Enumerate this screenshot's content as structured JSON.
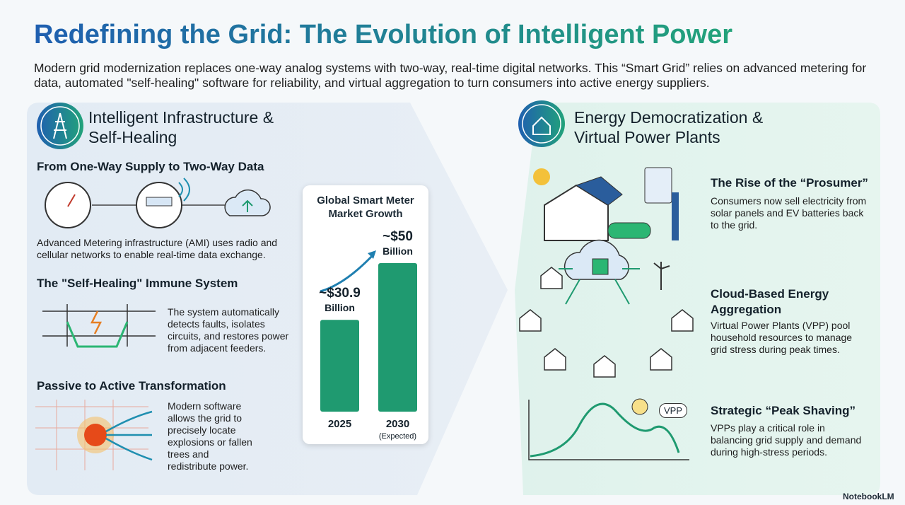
{
  "header": {
    "title": "Redefining the Grid: The Evolution of Intelligent Power",
    "subtitle": "Modern grid modernization replaces one-way analog systems with two-way, real-time digital networks. This “Smart Grid” relies on advanced metering for data, automated \"self-healing\" software for reliability, and virtual aggregation to turn consumers into active energy suppliers."
  },
  "left_panel": {
    "title": "Intelligent Infrastructure & Self-Healing",
    "sections": [
      {
        "heading": "From One-Way Supply to Two-Way Data",
        "text": "Advanced Metering infrastructure (AMI) uses radio and cellular networks to enable real-time data exchange."
      },
      {
        "heading": "The \"Self-Healing\" Immune System",
        "text": "The system automatically detects faults, isolates circuits, and restores power from adjacent feeders."
      },
      {
        "heading": "Passive to Active Transformation",
        "text": "Modern software allows the grid to precisely locate explosions or fallen trees and redistribute power."
      }
    ]
  },
  "market_chart": {
    "title": "Global Smart Meter Market Growth",
    "categories": [
      "2025",
      "2030"
    ],
    "values": [
      30.9,
      50
    ],
    "value_labels": [
      "~$30.9",
      "~$50"
    ],
    "unit": "Billion",
    "expected_note": "(Expected)",
    "colors": [
      "#1f9a70",
      "#1f9a70"
    ]
  },
  "right_panel": {
    "title": "Energy Democratization & Virtual Power Plants",
    "sections": [
      {
        "heading": "The Rise of the “Prosumer”",
        "text": "Consumers now sell electricity from solar panels and EV batteries back to the grid."
      },
      {
        "heading": "Cloud-Based Energy Aggregation",
        "text": "Virtual Power Plants (VPP) pool household resources to manage grid stress during peak times."
      },
      {
        "heading": "Strategic “Peak Shaving”",
        "text": "VPPs play a critical role in balancing grid supply and demand during high-stress periods.",
        "badge": "VPP"
      }
    ]
  },
  "footer": {
    "brand": "NotebookLM"
  }
}
